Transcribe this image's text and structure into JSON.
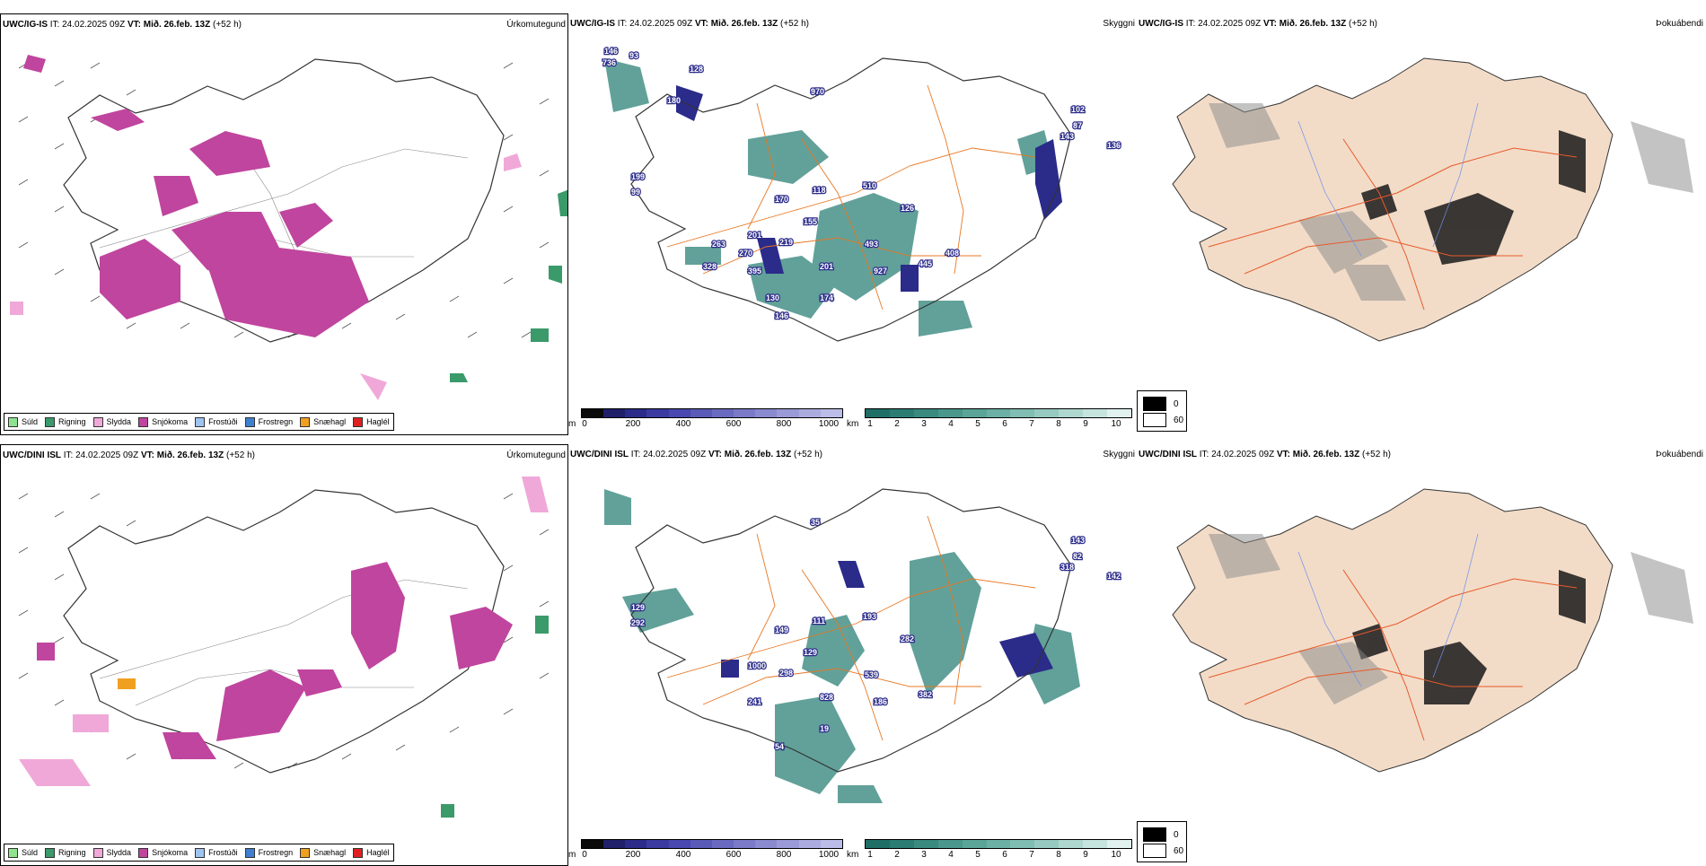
{
  "rows": [
    {
      "model": "UWC/IG-IS",
      "it_label": "IT:",
      "it_value": "24.02.2025 09Z",
      "vt_label": "VT:",
      "vt_value": "Mið. 26.feb. 13Z",
      "lead": "(+52 h)"
    },
    {
      "model": "UWC/DINI ISL",
      "it_label": "IT:",
      "it_value": "24.02.2025 09Z",
      "vt_label": "VT:",
      "vt_value": "Mið. 26.feb. 13Z",
      "lead": "(+52 h)"
    }
  ],
  "panel_titles": {
    "precip": "Úrkomutegund",
    "cloud": "Skyggni",
    "fog": "Þokuábendi"
  },
  "precip_legend": [
    {
      "label": "Súld",
      "color": "#8fe38f"
    },
    {
      "label": "Rigning",
      "color": "#3a9a6a"
    },
    {
      "label": "Slydda",
      "color": "#f0a8d8"
    },
    {
      "label": "Snjókoma",
      "color": "#c0459e"
    },
    {
      "label": "Frostúði",
      "color": "#9ec4f0"
    },
    {
      "label": "Frostregn",
      "color": "#3f7fd0"
    },
    {
      "label": "Snæhagl",
      "color": "#f0a020"
    },
    {
      "label": "Haglél",
      "color": "#e02020"
    }
  ],
  "cloudbase_bar": {
    "unit": "m",
    "ticks": [
      "0",
      "200",
      "400",
      "600",
      "800",
      "1000"
    ],
    "colors": [
      "#0a0a0a",
      "#1f1f6a",
      "#2b2b8a",
      "#3a3aa0",
      "#4848b0",
      "#5a5ab8",
      "#6a6ac0",
      "#7a7ac8",
      "#8a8ad0",
      "#9a9ad8",
      "#ababe0",
      "#bcbce8"
    ]
  },
  "visibility_bar": {
    "unit": "km",
    "ticks": [
      "1",
      "2",
      "3",
      "4",
      "5",
      "6",
      "7",
      "8",
      "9",
      "10"
    ],
    "colors": [
      "#1f6f66",
      "#2b7d74",
      "#3a8a80",
      "#4a978c",
      "#5aa498",
      "#6cb0a5",
      "#80bdb3",
      "#96cac1",
      "#aed7cf",
      "#c6e4de",
      "#e0f1ee"
    ]
  },
  "fog_legend": [
    {
      "value": "0",
      "color": "#000000"
    },
    {
      "value": "60",
      "color": "#ffffff"
    }
  ],
  "map_labels": {
    "top_cloud": [
      "146",
      "736",
      "93",
      "128",
      "180",
      "970",
      "102",
      "143",
      "136",
      "87",
      "199",
      "99",
      "170",
      "118",
      "510",
      "126",
      "155",
      "201",
      "219",
      "395",
      "493",
      "927",
      "445",
      "201",
      "174",
      "146",
      "408",
      "328",
      "263",
      "130",
      "270"
    ],
    "bottom_cloud": [
      "35",
      "143",
      "318",
      "142",
      "82",
      "129",
      "292",
      "149",
      "111",
      "193",
      "282",
      "129",
      "1000",
      "298",
      "241",
      "539",
      "186",
      "382",
      "828",
      "19",
      "54"
    ]
  },
  "colors": {
    "land_fog": "#f2dcc8",
    "roads": "#e87722",
    "rivers": "#6f8fe8",
    "snow": "#c0459e",
    "rain": "#3a9a6a",
    "sleet": "#f0a8d8",
    "cloud_teal": "#3a8a80",
    "cloud_blue": "#2b2b8a"
  }
}
